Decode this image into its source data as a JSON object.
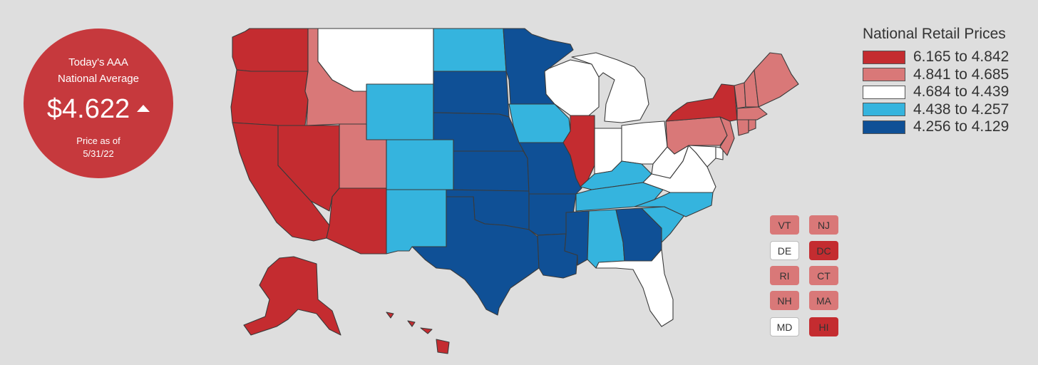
{
  "badge": {
    "line1": "Today's AAA",
    "line2": "National Average",
    "price": "$4.622",
    "trend_icon": "up-triangle-icon",
    "as_of": "Price as of",
    "date": "5/31/22"
  },
  "legend": {
    "title": "National Retail Prices",
    "items": [
      {
        "label": "6.165 to 4.842",
        "color": "#c42c30"
      },
      {
        "label": "4.841 to 4.685",
        "color": "#d97878"
      },
      {
        "label": "4.684 to 4.439",
        "color": "#ffffff"
      },
      {
        "label": "4.438 to 4.257",
        "color": "#35b4de"
      },
      {
        "label": "4.256 to 4.129",
        "color": "#0f5096"
      }
    ]
  },
  "small_states": [
    {
      "abbr": "VT",
      "bucket": 1
    },
    {
      "abbr": "NJ",
      "bucket": 1
    },
    {
      "abbr": "DE",
      "bucket": 2
    },
    {
      "abbr": "DC",
      "bucket": 0
    },
    {
      "abbr": "RI",
      "bucket": 1
    },
    {
      "abbr": "CT",
      "bucket": 1
    },
    {
      "abbr": "NH",
      "bucket": 1
    },
    {
      "abbr": "MA",
      "bucket": 1
    },
    {
      "abbr": "MD",
      "bucket": 2
    },
    {
      "abbr": "HI",
      "bucket": 0
    }
  ],
  "states": {
    "WA": 0,
    "OR": 0,
    "CA": 0,
    "NV": 0,
    "AZ": 0,
    "AK": 0,
    "HI": 0,
    "IL": 0,
    "NY": 0,
    "DC": 0,
    "ID": 1,
    "UT": 1,
    "PA": 1,
    "NJ": 1,
    "ME": 1,
    "VT": 1,
    "NH": 1,
    "MA": 1,
    "CT": 1,
    "RI": 1,
    "MT": 2,
    "WI": 2,
    "MI": 2,
    "IN": 2,
    "OH": 2,
    "WV": 2,
    "VA": 2,
    "FL": 2,
    "DE": 2,
    "MD": 2,
    "ND": 3,
    "WY": 3,
    "CO": 3,
    "NM": 3,
    "IA": 3,
    "KY": 3,
    "TN": 3,
    "NC": 3,
    "SC": 3,
    "AL": 3,
    "MN": 4,
    "SD": 4,
    "NE": 4,
    "KS": 4,
    "OK": 4,
    "TX": 4,
    "MO": 4,
    "AR": 4,
    "LA": 4,
    "MS": 4,
    "GA": 4
  }
}
